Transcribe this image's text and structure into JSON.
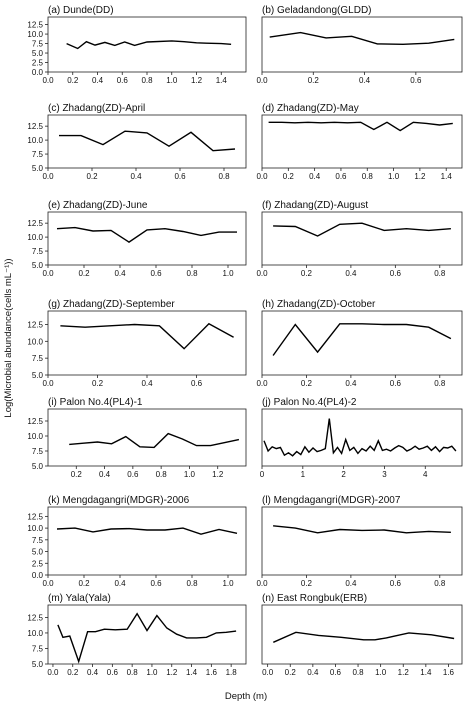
{
  "figure": {
    "ylabel": "Log(Microbial abundance(cells mL⁻¹))",
    "xlabel": "Depth (m)"
  },
  "chart_data": [
    {
      "type": "line",
      "title": "(a) Dunde(DD)",
      "xticks": [
        "0.0",
        "0.2",
        "0.4",
        "0.6",
        "0.8",
        "1.0",
        "1.2",
        "1.4"
      ],
      "xlim": [
        0,
        1.6
      ],
      "yticks": [
        "0.0",
        "2.5",
        "5.0",
        "7.5",
        "10.0",
        "12.5"
      ],
      "ylim": [
        0,
        14.5
      ],
      "x": [
        0.15,
        0.24,
        0.31,
        0.38,
        0.46,
        0.54,
        0.62,
        0.7,
        0.8,
        1.0,
        1.1,
        1.2,
        1.28,
        1.4,
        1.48
      ],
      "y": [
        7.5,
        6.2,
        8.0,
        7.1,
        7.8,
        7.0,
        7.9,
        7.0,
        7.9,
        8.2,
        8.0,
        7.7,
        7.6,
        7.5,
        7.3
      ]
    },
    {
      "type": "line",
      "title": "(b) Geladandong(GLDD)",
      "xticks": [
        "0.0",
        "0.2",
        "0.4",
        "0.6"
      ],
      "xlim": [
        0,
        0.78
      ],
      "yticks": [],
      "ylim": [
        0,
        14.5
      ],
      "x": [
        0.03,
        0.15,
        0.25,
        0.35,
        0.45,
        0.55,
        0.65,
        0.75
      ],
      "y": [
        9.2,
        10.4,
        9.0,
        9.4,
        7.4,
        7.3,
        7.6,
        8.6
      ]
    },
    {
      "type": "line",
      "title": "(c) Zhadang(ZD)-April",
      "xticks": [
        "0.0",
        "0.2",
        "0.4",
        "0.6",
        "0.8"
      ],
      "xlim": [
        0,
        0.9
      ],
      "yticks": [
        "5.0",
        "7.5",
        "10.0",
        "12.5"
      ],
      "ylim": [
        5,
        14.5
      ],
      "x": [
        0.05,
        0.15,
        0.25,
        0.35,
        0.45,
        0.55,
        0.65,
        0.75,
        0.85
      ],
      "y": [
        10.8,
        10.8,
        9.2,
        11.6,
        11.3,
        8.9,
        11.4,
        8.1,
        8.4
      ]
    },
    {
      "type": "line",
      "title": "(d) Zhadang(ZD)-May",
      "xticks": [
        "0.0",
        "0.2",
        "0.4",
        "0.6",
        "0.8",
        "1.0",
        "1.2",
        "1.4"
      ],
      "xlim": [
        0,
        1.52
      ],
      "yticks": [],
      "ylim": [
        5,
        14.5
      ],
      "x": [
        0.05,
        0.15,
        0.25,
        0.35,
        0.45,
        0.55,
        0.65,
        0.75,
        0.85,
        0.95,
        1.05,
        1.15,
        1.25,
        1.35,
        1.45
      ],
      "y": [
        13.2,
        13.2,
        13.1,
        13.2,
        13.1,
        13.2,
        13.1,
        13.2,
        11.9,
        13.2,
        11.7,
        13.2,
        13.0,
        12.7,
        13.0
      ]
    },
    {
      "type": "line",
      "title": "(e) Zhadang(ZD)-June",
      "xticks": [
        "0.0",
        "0.2",
        "0.4",
        "0.6",
        "0.8",
        "1.0"
      ],
      "xlim": [
        0,
        1.1
      ],
      "yticks": [
        "5.0",
        "7.5",
        "10.0",
        "12.5"
      ],
      "ylim": [
        5,
        14.5
      ],
      "x": [
        0.05,
        0.15,
        0.25,
        0.35,
        0.45,
        0.55,
        0.65,
        0.75,
        0.85,
        0.95,
        1.05
      ],
      "y": [
        11.5,
        11.7,
        11.1,
        11.2,
        9.1,
        11.3,
        11.5,
        11.0,
        10.3,
        10.9,
        10.9
      ]
    },
    {
      "type": "line",
      "title": "(f) Zhadang(ZD)-August",
      "xticks": [
        "0.0",
        "0.2",
        "0.4",
        "0.6",
        "0.8"
      ],
      "xlim": [
        0,
        0.9
      ],
      "yticks": [],
      "ylim": [
        5,
        14.5
      ],
      "x": [
        0.05,
        0.15,
        0.25,
        0.35,
        0.45,
        0.55,
        0.65,
        0.75,
        0.85
      ],
      "y": [
        12.0,
        11.9,
        10.2,
        12.3,
        12.5,
        11.2,
        11.5,
        11.2,
        11.5
      ]
    },
    {
      "type": "line",
      "title": "(g) Zhadang(ZD)-September",
      "xticks": [
        "0.0",
        "0.2",
        "0.4",
        "0.6"
      ],
      "xlim": [
        0,
        0.8
      ],
      "yticks": [
        "5.0",
        "7.5",
        "10.0",
        "12.5"
      ],
      "ylim": [
        5,
        14.5
      ],
      "x": [
        0.05,
        0.15,
        0.25,
        0.35,
        0.45,
        0.55,
        0.65,
        0.75
      ],
      "y": [
        12.3,
        12.1,
        12.3,
        12.5,
        12.3,
        8.9,
        12.6,
        10.6
      ]
    },
    {
      "type": "line",
      "title": "(h) Zhadang(ZD)-October",
      "xticks": [
        "0.0",
        "0.2",
        "0.4",
        "0.6",
        "0.8"
      ],
      "xlim": [
        0,
        0.9
      ],
      "yticks": [],
      "ylim": [
        5,
        14.5
      ],
      "x": [
        0.05,
        0.15,
        0.25,
        0.35,
        0.45,
        0.55,
        0.65,
        0.75,
        0.85
      ],
      "y": [
        7.9,
        12.5,
        8.4,
        12.6,
        12.6,
        12.5,
        12.5,
        12.1,
        10.4
      ]
    },
    {
      "type": "line",
      "title": "(i) Palon No.4(PL4)-1",
      "xticks": [
        "0.2",
        "0.4",
        "0.6",
        "0.8",
        "1.0",
        "1.2"
      ],
      "xlim": [
        0,
        1.4
      ],
      "yticks": [
        "5.0",
        "7.5",
        "10.0",
        "12.5"
      ],
      "ylim": [
        5,
        14.5
      ],
      "x": [
        0.15,
        0.25,
        0.35,
        0.45,
        0.55,
        0.65,
        0.75,
        0.85,
        0.95,
        1.05,
        1.15,
        1.25,
        1.35
      ],
      "y": [
        8.6,
        8.8,
        9.0,
        8.7,
        9.9,
        8.2,
        8.1,
        10.4,
        9.5,
        8.4,
        8.4,
        8.9,
        9.4
      ]
    },
    {
      "type": "line",
      "title": "(j) Palon No.4(PL4)-2",
      "xticks": [
        "0",
        "1",
        "2",
        "3",
        "4"
      ],
      "xlim": [
        0,
        4.9
      ],
      "yticks": [],
      "ylim": [
        5,
        14.5
      ],
      "x": [
        0.05,
        0.15,
        0.25,
        0.35,
        0.45,
        0.55,
        0.65,
        0.75,
        0.85,
        0.95,
        1.05,
        1.15,
        1.25,
        1.35,
        1.45,
        1.55,
        1.65,
        1.75,
        1.85,
        1.95,
        2.05,
        2.15,
        2.25,
        2.35,
        2.45,
        2.55,
        2.65,
        2.75,
        2.85,
        2.95,
        3.05,
        3.15,
        3.25,
        3.35,
        3.45,
        3.55,
        3.65,
        3.75,
        3.85,
        3.95,
        4.05,
        4.15,
        4.25,
        4.35,
        4.45,
        4.55,
        4.65,
        4.75
      ],
      "y": [
        9.2,
        7.5,
        8.2,
        7.9,
        8.1,
        6.8,
        7.2,
        6.7,
        7.4,
        6.9,
        8.2,
        7.3,
        8.0,
        7.4,
        7.6,
        7.9,
        12.9,
        7.2,
        8.1,
        7.1,
        9.4,
        7.6,
        8.1,
        7.1,
        7.9,
        7.5,
        8.3,
        7.6,
        9.2,
        7.6,
        7.8,
        7.5,
        8.0,
        8.4,
        8.1,
        7.5,
        7.8,
        8.3,
        7.8,
        8.0,
        8.3,
        7.6,
        8.2,
        7.4,
        8.1,
        8.0,
        8.3,
        7.5
      ]
    },
    {
      "type": "line",
      "title": "(k) Mengdagangri(MDGR)-2006",
      "xticks": [
        "0.0",
        "0.2",
        "0.4",
        "0.6",
        "0.8",
        "1.0"
      ],
      "xlim": [
        0,
        1.1
      ],
      "yticks": [
        "0.0",
        "2.5",
        "5.0",
        "7.5",
        "10.0",
        "12.5"
      ],
      "ylim": [
        0,
        14.5
      ],
      "x": [
        0.05,
        0.15,
        0.25,
        0.35,
        0.45,
        0.55,
        0.65,
        0.75,
        0.85,
        0.95,
        1.05
      ],
      "y": [
        9.8,
        10.0,
        9.2,
        9.8,
        9.9,
        9.6,
        9.6,
        10.0,
        8.7,
        9.7,
        8.9
      ]
    },
    {
      "type": "line",
      "title": "(l) Mengdagangri(MDGR)-2007",
      "xticks": [
        "0.0",
        "0.2",
        "0.4",
        "0.6",
        "0.8"
      ],
      "xlim": [
        0,
        0.9
      ],
      "yticks": [],
      "ylim": [
        0,
        14.5
      ],
      "x": [
        0.05,
        0.15,
        0.25,
        0.35,
        0.45,
        0.55,
        0.65,
        0.75,
        0.85
      ],
      "y": [
        10.5,
        10.0,
        9.0,
        9.7,
        9.5,
        9.6,
        9.0,
        9.3,
        9.1
      ]
    },
    {
      "type": "line",
      "title": "(m) Yala(Yala)",
      "xticks": [
        "0.0",
        "0.2",
        "0.4",
        "0.6",
        "0.8",
        "1.0",
        "1.2",
        "1.4",
        "1.6",
        "1.8"
      ],
      "xlim": [
        -0.05,
        1.95
      ],
      "yticks": [
        "5.0",
        "7.5",
        "10.0",
        "12.5"
      ],
      "ylim": [
        5,
        14.5
      ],
      "x": [
        0.05,
        0.1,
        0.17,
        0.26,
        0.35,
        0.43,
        0.52,
        0.63,
        0.75,
        0.85,
        0.95,
        1.05,
        1.15,
        1.25,
        1.35,
        1.45,
        1.55,
        1.65,
        1.75,
        1.85
      ],
      "y": [
        11.3,
        9.3,
        9.5,
        5.4,
        10.2,
        10.2,
        10.6,
        10.5,
        10.6,
        13.1,
        10.4,
        12.8,
        10.8,
        9.8,
        9.2,
        9.2,
        9.3,
        10.0,
        10.1,
        10.3
      ]
    },
    {
      "type": "line",
      "title": "(n) East Rongbuk(ERB)",
      "xticks": [
        "0.0",
        "0.2",
        "0.4",
        "0.6",
        "0.8",
        "1.0",
        "1.2",
        "1.4",
        "1.6"
      ],
      "xlim": [
        -0.05,
        1.72
      ],
      "yticks": [],
      "ylim": [
        5,
        14.5
      ],
      "x": [
        0.05,
        0.25,
        0.45,
        0.65,
        0.85,
        0.95,
        1.05,
        1.25,
        1.45,
        1.65
      ],
      "y": [
        8.5,
        10.1,
        9.6,
        9.3,
        8.9,
        8.9,
        9.2,
        10.0,
        9.7,
        9.1
      ]
    }
  ]
}
